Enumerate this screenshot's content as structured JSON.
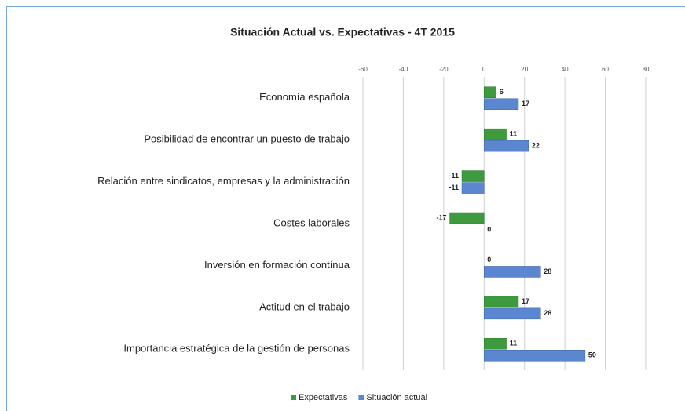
{
  "chart_data": {
    "type": "bar",
    "orientation": "horizontal",
    "title": "Situación Actual vs. Expectativas - 4T 2015",
    "categories": [
      "Economía española",
      "Posibilidad de encontrar un puesto de trabajo",
      "Relación entre sindicatos, empresas y la administración",
      "Costes laborales",
      "Inversión en formación contínua",
      "Actitud en el trabajo",
      "Importancia estratégica de la gestión de personas"
    ],
    "series": [
      {
        "name": "Expectativas",
        "color": "#3d9a3d",
        "values": [
          6,
          11,
          -11,
          -17,
          0,
          17,
          11
        ]
      },
      {
        "name": "Situación actual",
        "color": "#5b86d0",
        "values": [
          17,
          22,
          -11,
          0,
          28,
          28,
          50
        ]
      }
    ],
    "xlim": [
      -60,
      80
    ],
    "xticks": [
      -60,
      -40,
      -20,
      0,
      20,
      40,
      60,
      80
    ],
    "grid": true,
    "legend": "bottom"
  }
}
